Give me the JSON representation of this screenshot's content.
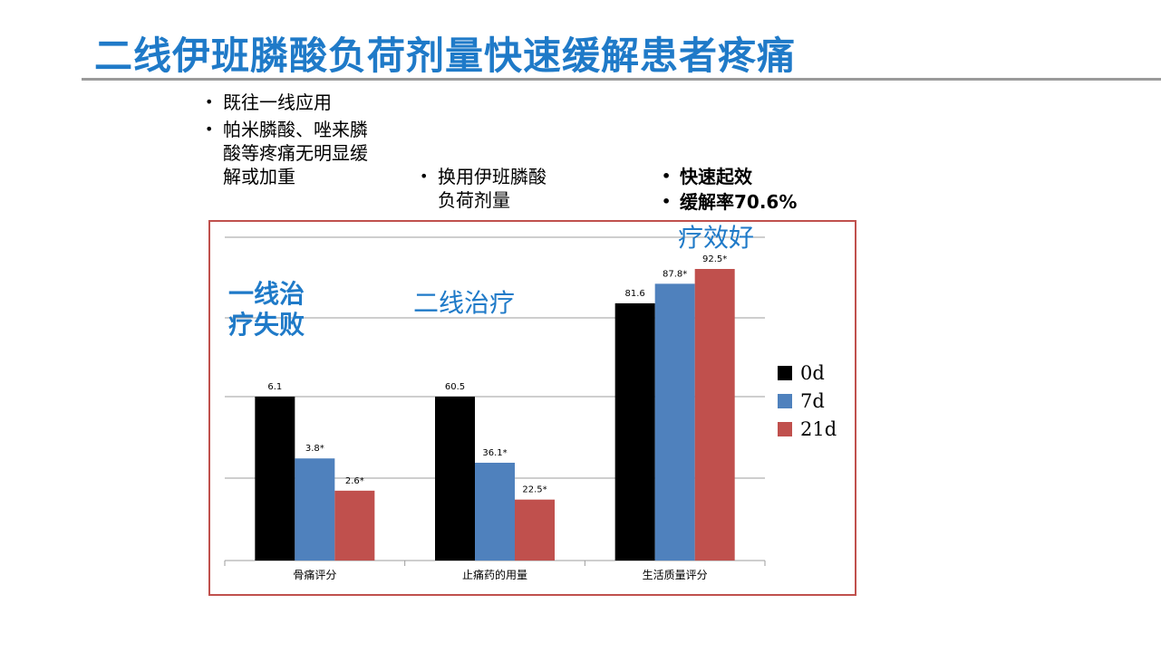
{
  "slide": {
    "title": "二线伊班膦酸负荷剂量快速缓解患者疼痛"
  },
  "notes": {
    "left": [
      "既往一线应用",
      "帕米膦酸、唑来膦酸等疼痛无明显缓解或加重"
    ],
    "middle": [
      "换用伊班膦酸负荷剂量"
    ],
    "right": [
      "快速起效",
      "缓解率70.6%"
    ]
  },
  "callouts": {
    "first_line_failure": "一线治疗失败",
    "second_line": "二线治疗",
    "good_efficacy": "疗效好"
  },
  "chart_data": {
    "type": "bar",
    "categories": [
      "骨痛评分",
      "止痛药的用量",
      "生活质量评分"
    ],
    "series": [
      {
        "name": "0d",
        "color": "#000000",
        "values": [
          6.1,
          60.5,
          81.6
        ],
        "labels": [
          "6.1",
          "60.5",
          "81.6"
        ]
      },
      {
        "name": "7d",
        "color": "#4f81bd",
        "values": [
          3.8,
          36.1,
          87.8
        ],
        "labels": [
          "3.8*",
          "36.1*",
          "87.8*"
        ]
      },
      {
        "name": "21d",
        "color": "#c0504d",
        "values": [
          2.6,
          22.5,
          92.5
        ],
        "labels": [
          "2.6*",
          "22.5*",
          "92.5*"
        ]
      }
    ],
    "note": "Each category group is plotted on its own scale (bar heights comparable only within a group); horizontal gridlines shown; legend at right.",
    "grid": true,
    "legend": "right"
  }
}
